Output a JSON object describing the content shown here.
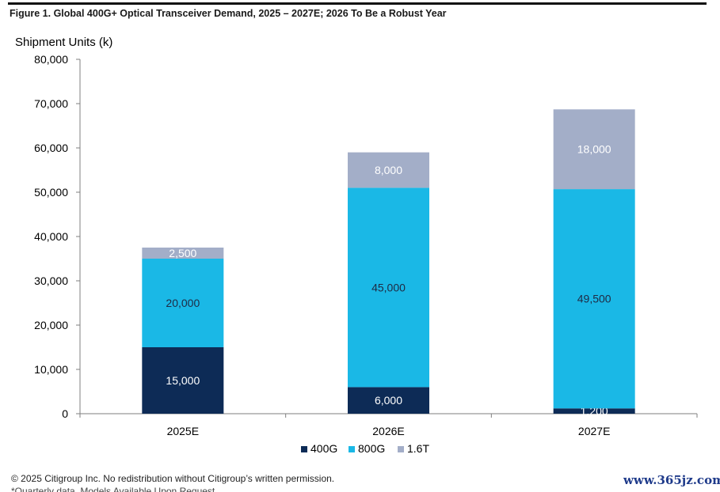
{
  "figure_title": "Figure 1. Global 400G+ Optical Transceiver Demand, 2025 – 2027E; 2026 To Be a Robust Year",
  "footer": "© 2025 Citigroup Inc. No redistribution without Citigroup’s written permission.",
  "footer_second_line": "*Quarterly data. Models Available Upon Request",
  "watermark": "www.365jz.com",
  "colors": {
    "400G": "#0d2b56",
    "800G": "#1ab8e6",
    "1.6T": "#a3aec8"
  },
  "chart_data": {
    "type": "bar",
    "stacked": true,
    "title": "",
    "ylabel": "Shipment Units (k)",
    "xlabel": "",
    "categories": [
      "2025E",
      "2026E",
      "2027E"
    ],
    "ylim": [
      0,
      80000
    ],
    "yticks": [
      0,
      10000,
      20000,
      30000,
      40000,
      50000,
      60000,
      70000,
      80000
    ],
    "ytick_labels": [
      "0",
      "10,000",
      "20,000",
      "30,000",
      "40,000",
      "50,000",
      "60,000",
      "70,000",
      "80,000"
    ],
    "series": [
      {
        "name": "400G",
        "values": [
          15000,
          6000,
          1200
        ],
        "labels": [
          "15,000",
          "6,000",
          "1,200"
        ]
      },
      {
        "name": "800G",
        "values": [
          20000,
          45000,
          49500
        ],
        "labels": [
          "20,000",
          "45,000",
          "49,500"
        ]
      },
      {
        "name": "1.6T",
        "values": [
          2500,
          8000,
          18000
        ],
        "labels": [
          "2,500",
          "8,000",
          "18,000"
        ]
      }
    ],
    "legend": "bottom",
    "grid": false
  }
}
